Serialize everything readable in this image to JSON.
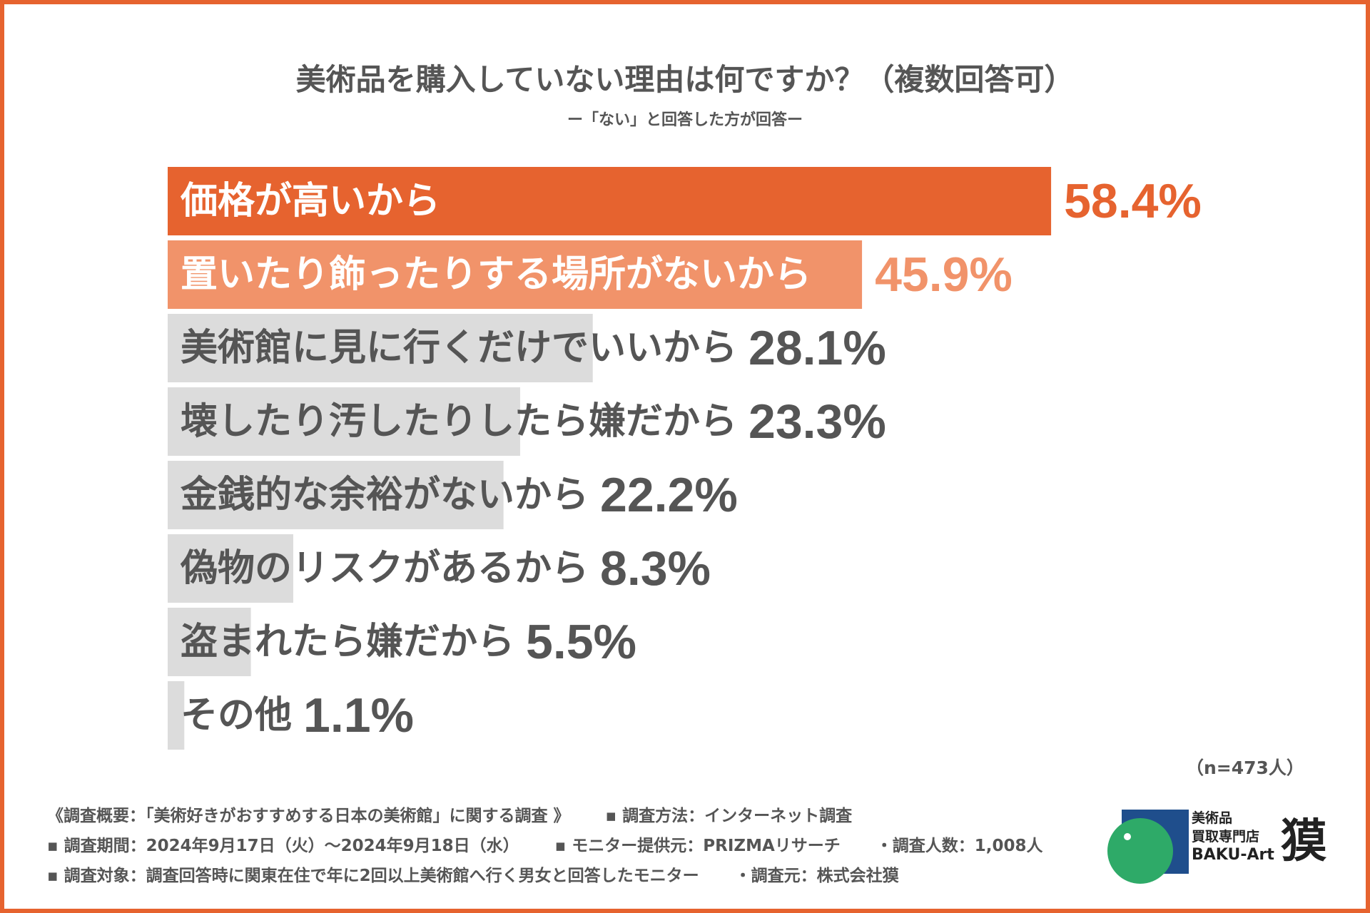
{
  "chart_data": {
    "type": "bar",
    "orientation": "horizontal",
    "title": "美術品を購入していない理由は何ですか？（複数回答可）",
    "subtitle": "ー「ない」と回答した方が回答ー",
    "categories": [
      "価格が高いから",
      "置いたり飾ったりする場所がないから",
      "美術館に見に行くだけでいいから",
      "壊したり汚したりしたら嫌だから",
      "金銭的な余裕がないから",
      "偽物のリスクがあるから",
      "盗まれたら嫌だから",
      "その他"
    ],
    "values": [
      58.4,
      45.9,
      28.1,
      23.3,
      22.2,
      8.3,
      5.5,
      1.1
    ],
    "value_labels": [
      "58.4%",
      "45.9%",
      "28.1%",
      "23.3%",
      "22.2%",
      "8.3%",
      "5.5%",
      "1.1%"
    ],
    "unit": "%",
    "note": "（n=473人）",
    "colors": {
      "rank1": "#e6632f",
      "rank2": "#f1936a",
      "others": "#dcdcdc",
      "label_dark": "#555555",
      "label_light": "#ffffff"
    }
  },
  "footer": {
    "line1": [
      "《調査概要：「美術好きがおすすめする日本の美術館」に関する調査 》",
      "▪ 調査方法：インターネット調査"
    ],
    "line2": [
      "▪ 調査期間：2024年9月17日（火）～2024年9月18日（水）",
      "▪ モニター提供元：PRIZMAリサーチ",
      "・調査人数：1,008人"
    ],
    "line3": [
      "▪ 調査対象：調査回答時に関東在住で年に2回以上美術館へ行く男女と回答したモニター",
      "・調査元：株式会社獏"
    ]
  },
  "logo": {
    "line1": "美術品",
    "line2": "買取専門店",
    "line3": "BAKU-Art",
    "kanji": "獏",
    "colors": {
      "green": "#2eaa68",
      "navy": "#1f4e8c"
    }
  }
}
